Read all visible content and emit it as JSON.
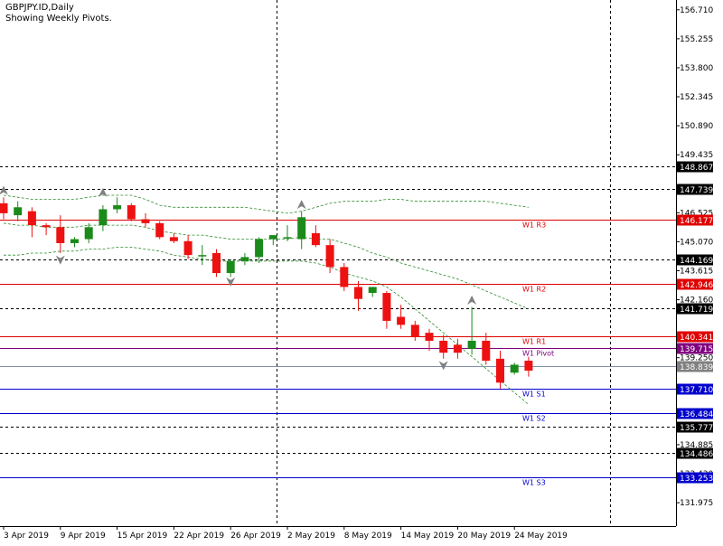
{
  "header": {
    "symbol": "GBPJPY.ID,Daily",
    "subtitle": "Showing Weekly Pivots."
  },
  "chart_data": {
    "type": "candlestick",
    "ylim": [
      130.8,
      157.2
    ],
    "price_ticks": [
      "156.710",
      "155.255",
      "153.800",
      "152.345",
      "150.890",
      "149.435",
      "146.525",
      "145.070",
      "143.615",
      "142.160",
      "139.250",
      "134.885",
      "133.430",
      "131.975"
    ],
    "date_labels": [
      {
        "index": 0,
        "label": "3 Apr 2019"
      },
      {
        "index": 4,
        "label": "9 Apr 2019"
      },
      {
        "index": 8,
        "label": "15 Apr 2019"
      },
      {
        "index": 12,
        "label": "22 Apr 2019"
      },
      {
        "index": 16,
        "label": "26 Apr 2019"
      },
      {
        "index": 20,
        "label": "2 May 2019"
      },
      {
        "index": 24,
        "label": "8 May 2019"
      },
      {
        "index": 28,
        "label": "14 May 2019"
      },
      {
        "index": 32,
        "label": "20 May 2019"
      },
      {
        "index": 36,
        "label": "24 May 2019"
      }
    ],
    "candles": [
      {
        "o": 147.0,
        "h": 147.3,
        "c": 146.5,
        "l": 146.2
      },
      {
        "o": 146.4,
        "h": 147.1,
        "c": 146.8,
        "l": 146.1
      },
      {
        "o": 146.6,
        "h": 146.8,
        "c": 145.9,
        "l": 145.3
      },
      {
        "o": 145.9,
        "h": 146.0,
        "c": 145.8,
        "l": 145.4
      },
      {
        "o": 145.8,
        "h": 146.4,
        "c": 145.0,
        "l": 144.5
      },
      {
        "o": 145.0,
        "h": 145.3,
        "c": 145.2,
        "l": 144.8
      },
      {
        "o": 145.2,
        "h": 146.0,
        "c": 145.8,
        "l": 145.0
      },
      {
        "o": 145.9,
        "h": 146.9,
        "c": 146.7,
        "l": 145.6
      },
      {
        "o": 146.7,
        "h": 147.3,
        "c": 146.9,
        "l": 146.5
      },
      {
        "o": 146.9,
        "h": 147.0,
        "c": 146.2,
        "l": 146.1
      },
      {
        "o": 146.2,
        "h": 146.5,
        "c": 146.0,
        "l": 145.8
      },
      {
        "o": 146.0,
        "h": 146.1,
        "c": 145.3,
        "l": 145.2
      },
      {
        "o": 145.3,
        "h": 145.5,
        "c": 145.1,
        "l": 145.0
      },
      {
        "o": 145.1,
        "h": 145.4,
        "c": 144.4,
        "l": 144.2
      },
      {
        "o": 144.4,
        "h": 144.9,
        "c": 144.4,
        "l": 143.9
      },
      {
        "o": 144.5,
        "h": 144.7,
        "c": 143.5,
        "l": 143.3
      },
      {
        "o": 143.5,
        "h": 144.2,
        "c": 144.1,
        "l": 143.3
      },
      {
        "o": 144.1,
        "h": 144.5,
        "c": 144.3,
        "l": 143.9
      },
      {
        "o": 144.3,
        "h": 145.3,
        "c": 145.2,
        "l": 144.0
      },
      {
        "o": 145.2,
        "h": 145.4,
        "c": 145.4,
        "l": 144.9
      },
      {
        "o": 145.3,
        "h": 145.9,
        "c": 145.3,
        "l": 145.1
      },
      {
        "o": 145.2,
        "h": 146.6,
        "c": 146.3,
        "l": 144.7
      },
      {
        "o": 145.5,
        "h": 145.9,
        "c": 144.9,
        "l": 144.8
      },
      {
        "o": 144.9,
        "h": 145.2,
        "c": 143.8,
        "l": 143.5
      },
      {
        "o": 143.8,
        "h": 144.0,
        "c": 142.8,
        "l": 142.6
      },
      {
        "o": 142.8,
        "h": 143.1,
        "c": 142.2,
        "l": 141.6
      },
      {
        "o": 142.5,
        "h": 142.8,
        "c": 142.8,
        "l": 142.3
      },
      {
        "o": 142.5,
        "h": 142.6,
        "c": 141.1,
        "l": 140.7
      },
      {
        "o": 141.3,
        "h": 141.9,
        "c": 140.9,
        "l": 140.7
      },
      {
        "o": 140.9,
        "h": 141.1,
        "c": 140.3,
        "l": 140.1
      },
      {
        "o": 140.5,
        "h": 140.7,
        "c": 140.1,
        "l": 139.6
      },
      {
        "o": 140.1,
        "h": 140.4,
        "c": 139.5,
        "l": 139.2
      },
      {
        "o": 139.9,
        "h": 140.2,
        "c": 139.5,
        "l": 139.2
      },
      {
        "o": 139.7,
        "h": 141.8,
        "c": 140.1,
        "l": 139.4
      },
      {
        "o": 140.1,
        "h": 140.5,
        "c": 139.1,
        "l": 138.9
      },
      {
        "o": 139.2,
        "h": 139.6,
        "c": 138.0,
        "l": 137.7
      },
      {
        "o": 138.5,
        "h": 139.0,
        "c": 138.9,
        "l": 138.4
      },
      {
        "o": 139.1,
        "h": 139.3,
        "c": 138.6,
        "l": 138.3
      }
    ],
    "levels": [
      {
        "value": 148.867,
        "label": "148.867",
        "kind": "hline"
      },
      {
        "value": 147.739,
        "label": "147.739",
        "kind": "hline"
      },
      {
        "value": 146.177,
        "label": "146.177",
        "kind": "pivot",
        "name": "W1 R3"
      },
      {
        "value": 144.169,
        "label": "144.169",
        "kind": "hline"
      },
      {
        "value": 142.946,
        "label": "142.946",
        "kind": "pivot",
        "name": "W1 R2"
      },
      {
        "value": 141.719,
        "label": "141.719",
        "kind": "hline"
      },
      {
        "value": 140.341,
        "label": "140.341",
        "kind": "pivot",
        "name": "W1 R1"
      },
      {
        "value": 139.715,
        "label": "139.715",
        "kind": "pivotmain",
        "name": "W1 Pivot"
      },
      {
        "value": 138.839,
        "label": "138.839",
        "kind": "bid"
      },
      {
        "value": 137.71,
        "label": "137.710",
        "kind": "support",
        "name": "W1 S1"
      },
      {
        "value": 136.484,
        "label": "136.484",
        "kind": "support",
        "name": "W1 S2"
      },
      {
        "value": 135.777,
        "label": "135.777",
        "kind": "hline"
      },
      {
        "value": 134.486,
        "label": "134.486",
        "kind": "hline"
      },
      {
        "value": 133.253,
        "label": "133.253",
        "kind": "support",
        "name": "W1 S3"
      }
    ],
    "channel_upper": [
      147.4,
      147.3,
      147.2,
      147.2,
      147.2,
      147.2,
      147.3,
      147.4,
      147.4,
      147.4,
      147.2,
      146.9,
      146.8,
      146.8,
      146.8,
      146.8,
      146.8,
      146.8,
      146.7,
      146.6,
      146.5,
      146.6,
      146.8,
      147.0,
      147.1,
      147.1,
      147.1,
      147.2,
      147.2,
      147.1,
      147.1,
      147.1,
      147.1,
      147.1,
      147.1,
      147.0,
      146.9,
      146.8
    ],
    "channel_middle": [
      146.0,
      145.9,
      145.9,
      145.8,
      145.8,
      145.8,
      145.9,
      145.9,
      145.9,
      145.9,
      145.8,
      145.6,
      145.5,
      145.4,
      145.4,
      145.3,
      145.2,
      145.2,
      145.2,
      145.2,
      145.2,
      145.3,
      145.2,
      145.2,
      145.0,
      144.8,
      144.5,
      144.3,
      144.0,
      143.8,
      143.6,
      143.4,
      143.2,
      142.9,
      142.6,
      142.3,
      142.0,
      141.7
    ],
    "channel_lower": [
      144.4,
      144.4,
      144.5,
      144.5,
      144.6,
      144.6,
      144.7,
      144.7,
      144.8,
      144.8,
      144.7,
      144.6,
      144.4,
      144.3,
      144.2,
      144.1,
      144.1,
      144.1,
      144.1,
      144.1,
      144.1,
      144.1,
      144.0,
      143.8,
      143.5,
      143.3,
      143.1,
      142.8,
      142.3,
      141.7,
      141.1,
      140.5,
      139.9,
      139.3,
      138.7,
      138.1,
      137.5,
      136.9
    ],
    "fractals_up": [
      {
        "index": 0,
        "value": 147.6
      },
      {
        "index": 7,
        "value": 147.5
      },
      {
        "index": 21,
        "value": 146.9
      },
      {
        "index": 33,
        "value": 142.1
      }
    ],
    "fractals_down": [
      {
        "index": 4,
        "value": 144.2
      },
      {
        "index": 16,
        "value": 143.1
      },
      {
        "index": 31,
        "value": 138.9
      }
    ],
    "colors": {
      "bull": "#1a8a1a",
      "bear": "#ee1111",
      "resistance": "#e00000",
      "pivot": "#800080",
      "support": "#0000cc",
      "bid": "#808080",
      "channel": "#2e8b2e",
      "fractal": "#808080"
    }
  }
}
